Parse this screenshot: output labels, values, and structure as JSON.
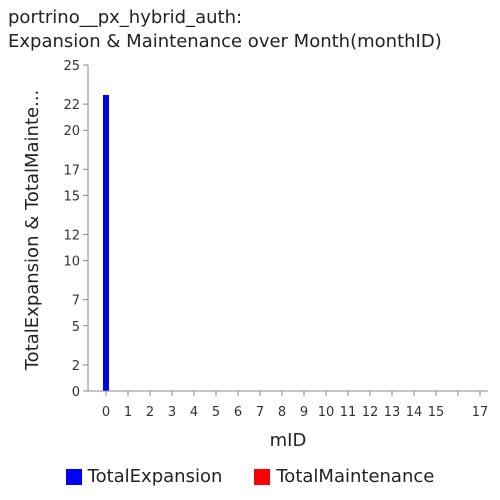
{
  "chart_data": {
    "type": "bar",
    "title_lines": [
      "portrino__px_hybrid_auth:",
      "Expansion & Maintenance over Month(monthID)"
    ],
    "xlabel": "mID",
    "ylabel": "TotalExpansion & TotalMainte...",
    "ylim": [
      0,
      25
    ],
    "yticks": [
      0,
      2,
      5,
      7,
      10,
      12,
      15,
      17,
      20,
      22,
      25
    ],
    "categories": [
      "0",
      "1",
      "2",
      "3",
      "4",
      "5",
      "6",
      "7",
      "8",
      "9",
      "10",
      "11",
      "12",
      "13",
      "14",
      "15",
      "",
      "17"
    ],
    "series": [
      {
        "name": "TotalExpansion",
        "color": "#0000ff",
        "values": [
          22.7,
          0,
          0,
          0,
          0,
          0,
          0,
          0,
          0,
          0,
          0,
          0,
          0,
          0,
          0,
          0,
          0,
          0
        ]
      },
      {
        "name": "TotalMaintenance",
        "color": "#ff0000",
        "values": [
          0,
          0,
          0,
          0,
          0,
          0,
          0,
          0,
          0,
          0,
          0,
          0,
          0,
          0,
          0,
          0,
          0,
          0
        ]
      }
    ],
    "grid": false,
    "legend_position": "bottom"
  }
}
